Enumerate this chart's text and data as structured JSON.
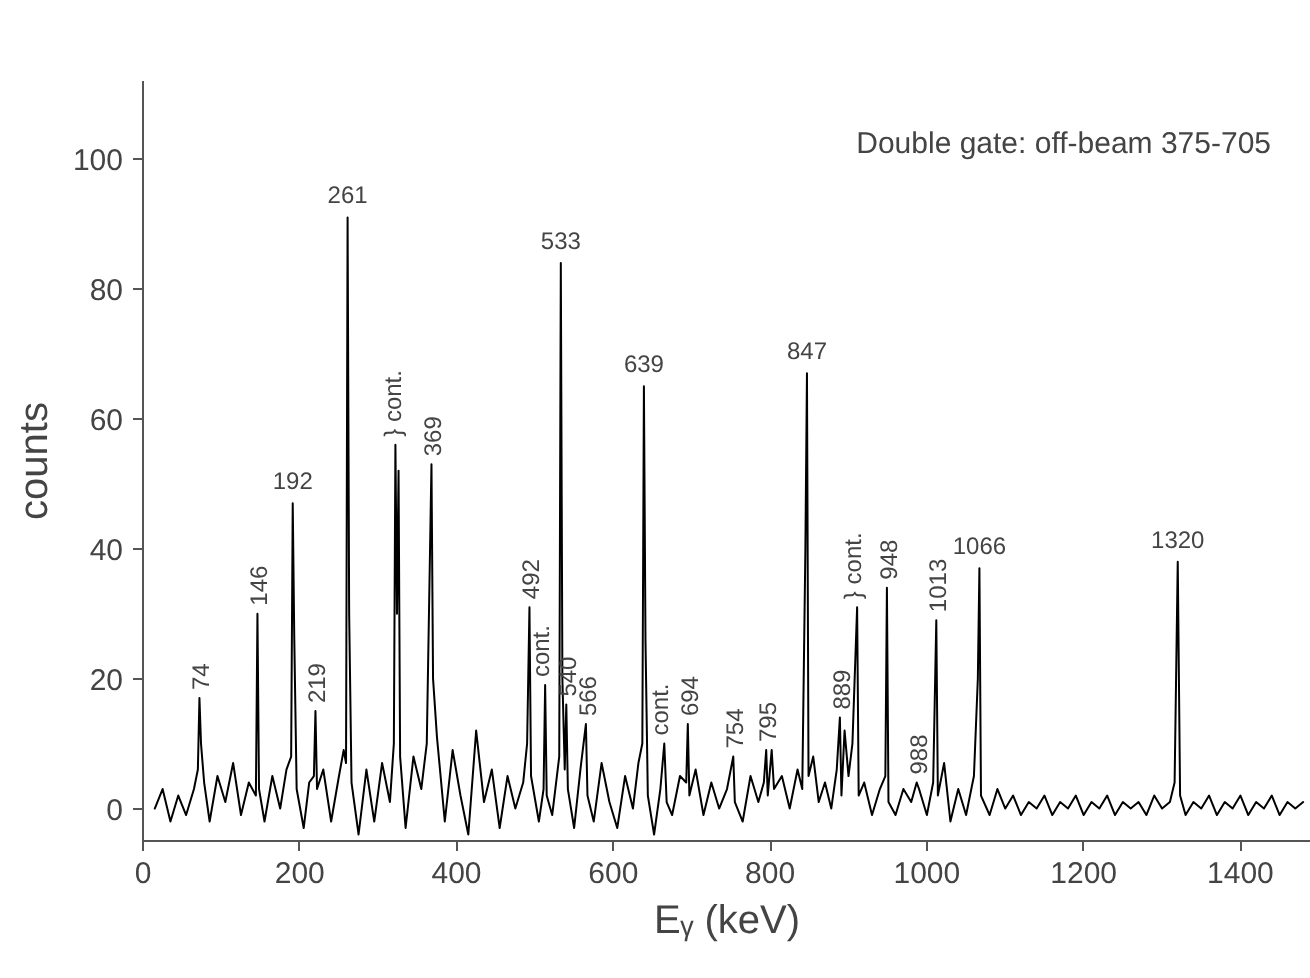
{
  "chart_data": {
    "type": "line",
    "title": "Double gate: off-beam 375-705",
    "xlabel": "Eᵧ (keV)",
    "ylabel": "counts",
    "xlim": [
      0,
      1490
    ],
    "ylim": [
      -5,
      112
    ],
    "xticks": [
      0,
      200,
      400,
      600,
      800,
      1000,
      1200,
      1400
    ],
    "yticks": [
      0,
      20,
      40,
      60,
      80,
      100
    ],
    "line_style": "solid",
    "series": [
      {
        "color": "#000000",
        "x": [
          15,
          25,
          35,
          45,
          55,
          65,
          70,
          72,
          74,
          78,
          85,
          95,
          105,
          115,
          125,
          135,
          144,
          146,
          148,
          155,
          165,
          175,
          183,
          189,
          191,
          193,
          196,
          205,
          212,
          218,
          220,
          222,
          230,
          240,
          250,
          256,
          259,
          261,
          263,
          266,
          275,
          285,
          295,
          305,
          315,
          320,
          322,
          324,
          326,
          328,
          335,
          345,
          355,
          362,
          368,
          370,
          375,
          385,
          395,
          405,
          415,
          425,
          435,
          445,
          455,
          465,
          475,
          485,
          490,
          493,
          495,
          505,
          511,
          513,
          515,
          522,
          528,
          531,
          533,
          535,
          538,
          540,
          542,
          550,
          558,
          565,
          567,
          575,
          585,
          595,
          605,
          615,
          625,
          632,
          637,
          639,
          641,
          644,
          652,
          660,
          665,
          668,
          675,
          685,
          693,
          695,
          697,
          705,
          715,
          725,
          735,
          745,
          753,
          755,
          765,
          775,
          785,
          792,
          795,
          797,
          802,
          805,
          815,
          825,
          835,
          841,
          845,
          847,
          849,
          855,
          862,
          870,
          878,
          885,
          889,
          891,
          895,
          900,
          905,
          911,
          913,
          920,
          930,
          940,
          947,
          949,
          951,
          960,
          970,
          980,
          987,
          990,
          1000,
          1008,
          1012,
          1014,
          1022,
          1030,
          1040,
          1050,
          1060,
          1065,
          1067,
          1069,
          1080,
          1090,
          1100,
          1110,
          1120,
          1130,
          1140,
          1150,
          1160,
          1170,
          1180,
          1190,
          1200,
          1210,
          1220,
          1230,
          1240,
          1250,
          1260,
          1270,
          1280,
          1290,
          1300,
          1310,
          1316,
          1320,
          1323,
          1330,
          1340,
          1350,
          1360,
          1370,
          1380,
          1390,
          1400,
          1410,
          1420,
          1430,
          1440,
          1450,
          1460,
          1470,
          1480
        ],
        "values": [
          0,
          3,
          -2,
          2,
          -1,
          3,
          6,
          17,
          10,
          4,
          -2,
          5,
          1,
          7,
          -1,
          4,
          2,
          30,
          3,
          -2,
          5,
          0,
          6,
          8,
          47,
          26,
          3,
          -3,
          4,
          5,
          15,
          3,
          6,
          -2,
          5,
          9,
          7,
          91,
          30,
          4,
          -4,
          6,
          -2,
          7,
          1,
          10,
          56,
          30,
          52,
          8,
          -3,
          8,
          3,
          10,
          53,
          20,
          11,
          -2,
          9,
          2,
          -4,
          12,
          1,
          6,
          -3,
          5,
          0,
          4,
          10,
          31,
          5,
          -2,
          3,
          19,
          2,
          -1,
          5,
          8,
          84,
          20,
          6,
          16,
          3,
          -3,
          6,
          13,
          2,
          -2,
          7,
          1,
          -3,
          5,
          0,
          7,
          10,
          65,
          26,
          2,
          -4,
          3,
          10,
          1,
          -1,
          5,
          4,
          13,
          2,
          6,
          -1,
          4,
          0,
          3,
          8,
          1,
          -2,
          5,
          1,
          4,
          9,
          2,
          9,
          3,
          5,
          0,
          6,
          3,
          40,
          67,
          5,
          8,
          1,
          4,
          0,
          6,
          14,
          2,
          12,
          5,
          10,
          31,
          2,
          4,
          -1,
          3,
          5,
          34,
          1,
          -1,
          3,
          1,
          4,
          3,
          -1,
          4,
          29,
          2,
          7,
          -2,
          3,
          -1,
          5,
          20,
          37,
          2,
          -1,
          3,
          0,
          2,
          -1,
          1,
          0,
          2,
          -1,
          1,
          0,
          2,
          -1,
          1,
          0,
          2,
          -1,
          1,
          0,
          1,
          -1,
          2,
          0,
          1,
          4,
          38,
          2,
          -1,
          1,
          0,
          2,
          -1,
          1,
          0,
          2,
          -1,
          1,
          0,
          2,
          -1,
          1,
          0,
          1
        ]
      }
    ],
    "annotations": [
      {
        "text": "74",
        "x": 72,
        "y": 17
      },
      {
        "text": "146",
        "x": 146,
        "y": 30
      },
      {
        "text": "192",
        "x": 191,
        "y": 47
      },
      {
        "text": "219",
        "x": 220,
        "y": 15
      },
      {
        "text": "261",
        "x": 261,
        "y": 91
      },
      {
        "text": "} cont.",
        "x": 324,
        "y": 56
      },
      {
        "text": "369",
        "x": 368,
        "y": 53
      },
      {
        "text": "492",
        "x": 493,
        "y": 31
      },
      {
        "text": "cont.",
        "x": 513,
        "y": 19
      },
      {
        "text": "533",
        "x": 533,
        "y": 84
      },
      {
        "text": "540",
        "x": 540,
        "y": 16
      },
      {
        "text": "566",
        "x": 565,
        "y": 13
      },
      {
        "text": "639",
        "x": 639,
        "y": 65
      },
      {
        "text": "cont.",
        "x": 665,
        "y": 10
      },
      {
        "text": "694",
        "x": 695,
        "y": 13
      },
      {
        "text": "754",
        "x": 753,
        "y": 8
      },
      {
        "text": "795",
        "x": 795,
        "y": 9
      },
      {
        "text": "847",
        "x": 847,
        "y": 67
      },
      {
        "text": "889",
        "x": 889,
        "y": 14
      },
      {
        "text": "} cont.",
        "x": 911,
        "y": 31
      },
      {
        "text": "948",
        "x": 949,
        "y": 34
      },
      {
        "text": "988",
        "x": 987,
        "y": 4
      },
      {
        "text": "1013",
        "x": 1012,
        "y": 29
      },
      {
        "text": "1066",
        "x": 1067,
        "y": 37
      },
      {
        "text": "1320",
        "x": 1320,
        "y": 38
      }
    ]
  }
}
